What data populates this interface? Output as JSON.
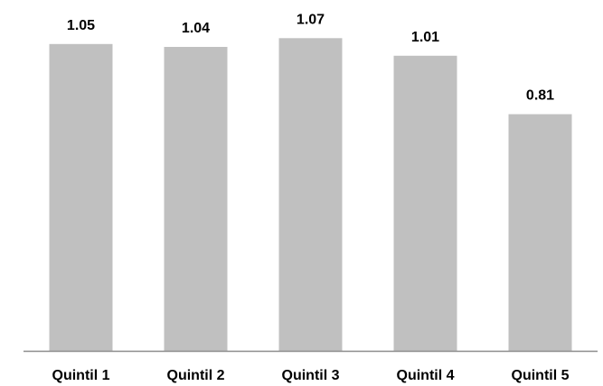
{
  "chart_data": {
    "type": "bar",
    "categories": [
      "Quintil 1",
      "Quintil 2",
      "Quintil 3",
      "Quintil 4",
      "Quintil 5"
    ],
    "values": [
      1.05,
      1.04,
      1.07,
      1.01,
      0.81
    ],
    "data_labels": [
      "1.05",
      "1.04",
      "1.07",
      "1.01",
      "0.81"
    ],
    "title": "",
    "xlabel": "",
    "ylabel": "",
    "ylim": [
      0,
      1.2
    ],
    "grid": false,
    "legend": "none",
    "bar_color": "#c0c0c0",
    "axis_color": "#8c8c8c"
  }
}
